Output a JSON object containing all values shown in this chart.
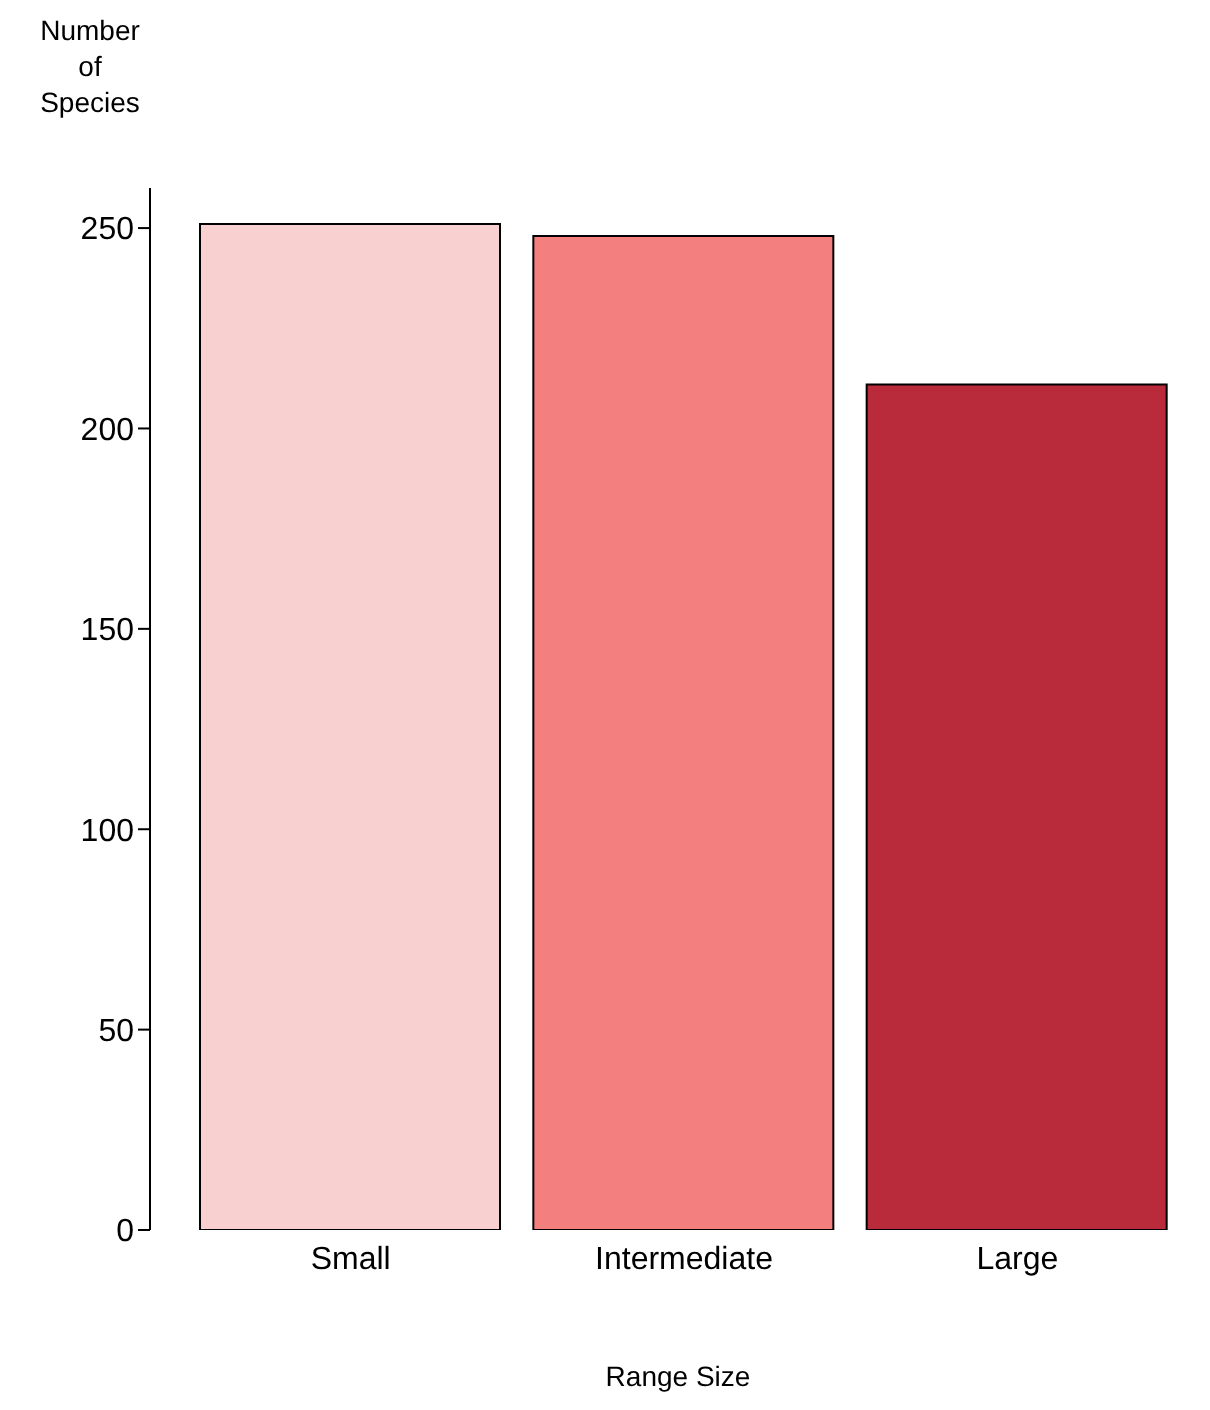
{
  "chart_data": {
    "type": "bar",
    "xlabel": "Range Size",
    "ylabel": "Number\nof\nSpecies",
    "categories": [
      "Small",
      "Intermediate",
      "Large"
    ],
    "values": [
      251,
      248,
      211
    ],
    "colors": [
      "#f9d0d0",
      "#f47f7f",
      "#b92b3a"
    ],
    "ylim": [
      0,
      260
    ],
    "yticks": [
      0,
      50,
      100,
      150,
      200,
      250
    ],
    "grid": false
  }
}
